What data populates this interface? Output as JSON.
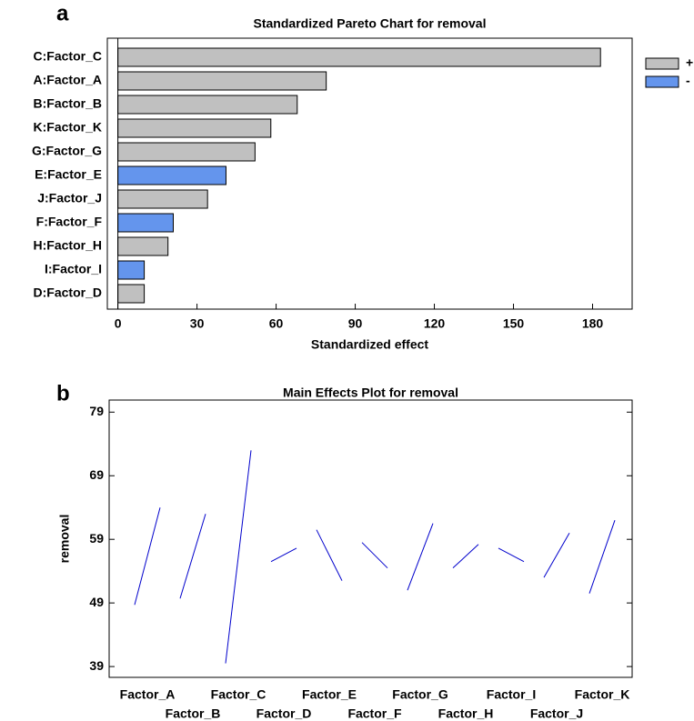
{
  "chart_data": [
    {
      "type": "bar",
      "panel_label": "a",
      "title": "Standardized Pareto Chart for removal",
      "xlabel": "Standardized effect",
      "categories": [
        "C:Factor_C",
        "A:Factor_A",
        "B:Factor_B",
        "K:Factor_K",
        "G:Factor_G",
        "E:Factor_E",
        "J:Factor_J",
        "F:Factor_F",
        "H:Factor_H",
        "I:Factor_I",
        "D:Factor_D"
      ],
      "series": [
        {
          "name": "+",
          "color": "#c0c0c0",
          "values": [
            183,
            79,
            68,
            58,
            52,
            null,
            34,
            null,
            19,
            null,
            10
          ]
        },
        {
          "name": "-",
          "color": "#6495ed",
          "values": [
            null,
            null,
            null,
            null,
            null,
            41,
            null,
            21,
            null,
            10,
            null
          ]
        }
      ],
      "xlim": [
        -4,
        195
      ],
      "xticks": [
        0,
        30,
        60,
        90,
        120,
        150,
        180
      ],
      "legend": "right"
    },
    {
      "type": "line",
      "panel_label": "b",
      "title": "Main Effects Plot for removal",
      "ylabel": "removal",
      "categories": [
        "Factor_A",
        "Factor_B",
        "Factor_C",
        "Factor_D",
        "Factor_E",
        "Factor_F",
        "Factor_G",
        "Factor_H",
        "Factor_I",
        "Factor_J",
        "Factor_K"
      ],
      "series": [
        {
          "color": "#0000cc",
          "values": [
            48.7,
            49.7,
            39.5,
            55.5,
            60.5,
            58.5,
            51,
            54.5,
            57.6,
            53,
            50.5
          ]
        },
        {
          "color": "#0000cc",
          "values": [
            64,
            63,
            73,
            57.6,
            52.5,
            54.5,
            61.5,
            58.2,
            55.5,
            60,
            62
          ]
        }
      ],
      "ylim": [
        37.3,
        80.9
      ],
      "yticks": [
        39,
        49,
        59,
        69,
        79
      ]
    }
  ]
}
